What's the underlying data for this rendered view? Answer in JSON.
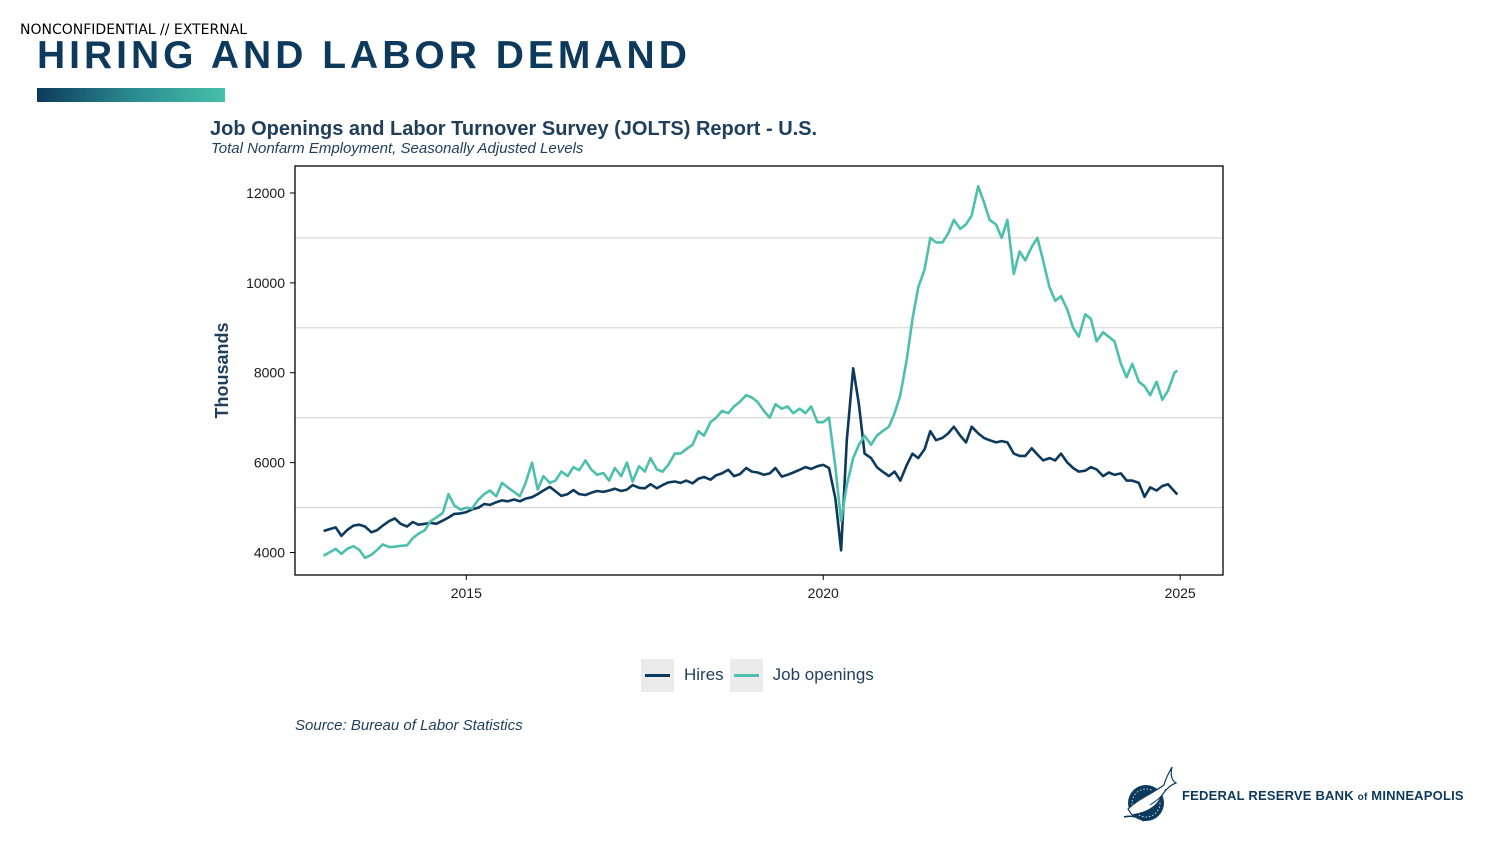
{
  "header": {
    "classification": "NONCONFIDENTIAL // EXTERNAL",
    "title": "HIRING AND LABOR DEMAND"
  },
  "colors": {
    "brand_navy": "#0d3a5c",
    "accent_teal": "#45c1aa",
    "hires": "#0d3a5c",
    "job_openings": "#4cc0ac"
  },
  "footer": {
    "logo_icon": "eagle-seal-icon",
    "logo_text_part1": "FEDERAL RESERVE BANK",
    "logo_text_of": "of",
    "logo_text_part2": "MINNEAPOLIS"
  },
  "chart_data": {
    "type": "line",
    "title": "Job Openings and Labor Turnover Survey (JOLTS) Report - U.S.",
    "subtitle": "Total Nonfarm Employment, Seasonally Adjusted Levels",
    "xlabel": "",
    "ylabel": "Thousands",
    "xlim": [
      2012.6,
      2025.6
    ],
    "ylim": [
      3500,
      12600
    ],
    "x_ticks": [
      2015,
      2020,
      2025
    ],
    "x_tick_labels": [
      "2015",
      "2020",
      "2025"
    ],
    "y_ticks": [
      4000,
      6000,
      8000,
      10000,
      12000
    ],
    "y_tick_labels": [
      "4000",
      "6000",
      "8000",
      "10000",
      "12000"
    ],
    "grid": "horizontal",
    "legend_position": "bottom",
    "source": "Source: Bureau of Labor Statistics",
    "series": [
      {
        "name": "Hires",
        "color": "#0d3a5c",
        "points": [
          [
            2013.0,
            4480
          ],
          [
            2013.08,
            4520
          ],
          [
            2013.17,
            4560
          ],
          [
            2013.25,
            4370
          ],
          [
            2013.33,
            4500
          ],
          [
            2013.42,
            4600
          ],
          [
            2013.5,
            4620
          ],
          [
            2013.58,
            4580
          ],
          [
            2013.67,
            4450
          ],
          [
            2013.75,
            4500
          ],
          [
            2013.83,
            4600
          ],
          [
            2013.92,
            4700
          ],
          [
            2014.0,
            4760
          ],
          [
            2014.08,
            4640
          ],
          [
            2014.17,
            4580
          ],
          [
            2014.25,
            4680
          ],
          [
            2014.33,
            4620
          ],
          [
            2014.42,
            4640
          ],
          [
            2014.5,
            4660
          ],
          [
            2014.58,
            4640
          ],
          [
            2014.67,
            4710
          ],
          [
            2014.75,
            4780
          ],
          [
            2014.83,
            4860
          ],
          [
            2014.92,
            4870
          ],
          [
            2015.0,
            4900
          ],
          [
            2015.08,
            4960
          ],
          [
            2015.17,
            5000
          ],
          [
            2015.25,
            5080
          ],
          [
            2015.33,
            5060
          ],
          [
            2015.42,
            5120
          ],
          [
            2015.5,
            5160
          ],
          [
            2015.58,
            5140
          ],
          [
            2015.67,
            5180
          ],
          [
            2015.75,
            5140
          ],
          [
            2015.83,
            5200
          ],
          [
            2015.92,
            5230
          ],
          [
            2016.0,
            5300
          ],
          [
            2016.08,
            5380
          ],
          [
            2016.17,
            5460
          ],
          [
            2016.25,
            5360
          ],
          [
            2016.33,
            5260
          ],
          [
            2016.42,
            5300
          ],
          [
            2016.5,
            5390
          ],
          [
            2016.58,
            5300
          ],
          [
            2016.67,
            5280
          ],
          [
            2016.75,
            5330
          ],
          [
            2016.83,
            5370
          ],
          [
            2016.92,
            5350
          ],
          [
            2017.0,
            5380
          ],
          [
            2017.08,
            5420
          ],
          [
            2017.17,
            5370
          ],
          [
            2017.25,
            5400
          ],
          [
            2017.33,
            5500
          ],
          [
            2017.42,
            5440
          ],
          [
            2017.5,
            5430
          ],
          [
            2017.58,
            5520
          ],
          [
            2017.67,
            5430
          ],
          [
            2017.75,
            5500
          ],
          [
            2017.83,
            5560
          ],
          [
            2017.92,
            5580
          ],
          [
            2018.0,
            5550
          ],
          [
            2018.08,
            5600
          ],
          [
            2018.17,
            5540
          ],
          [
            2018.25,
            5640
          ],
          [
            2018.33,
            5680
          ],
          [
            2018.42,
            5620
          ],
          [
            2018.5,
            5720
          ],
          [
            2018.58,
            5760
          ],
          [
            2018.67,
            5840
          ],
          [
            2018.75,
            5700
          ],
          [
            2018.83,
            5740
          ],
          [
            2018.92,
            5880
          ],
          [
            2019.0,
            5800
          ],
          [
            2019.08,
            5780
          ],
          [
            2019.17,
            5730
          ],
          [
            2019.25,
            5760
          ],
          [
            2019.33,
            5880
          ],
          [
            2019.42,
            5690
          ],
          [
            2019.5,
            5730
          ],
          [
            2019.58,
            5780
          ],
          [
            2019.67,
            5840
          ],
          [
            2019.75,
            5900
          ],
          [
            2019.83,
            5860
          ],
          [
            2019.92,
            5920
          ],
          [
            2020.0,
            5950
          ],
          [
            2020.08,
            5880
          ],
          [
            2020.17,
            5200
          ],
          [
            2020.25,
            4050
          ],
          [
            2020.33,
            6500
          ],
          [
            2020.42,
            8100
          ],
          [
            2020.5,
            7300
          ],
          [
            2020.58,
            6200
          ],
          [
            2020.67,
            6100
          ],
          [
            2020.75,
            5900
          ],
          [
            2020.83,
            5800
          ],
          [
            2020.92,
            5700
          ],
          [
            2021.0,
            5800
          ],
          [
            2021.08,
            5600
          ],
          [
            2021.17,
            5950
          ],
          [
            2021.25,
            6200
          ],
          [
            2021.33,
            6100
          ],
          [
            2021.42,
            6300
          ],
          [
            2021.5,
            6700
          ],
          [
            2021.58,
            6500
          ],
          [
            2021.67,
            6550
          ],
          [
            2021.75,
            6650
          ],
          [
            2021.83,
            6800
          ],
          [
            2021.92,
            6600
          ],
          [
            2022.0,
            6450
          ],
          [
            2022.08,
            6800
          ],
          [
            2022.17,
            6650
          ],
          [
            2022.25,
            6550
          ],
          [
            2022.33,
            6500
          ],
          [
            2022.42,
            6450
          ],
          [
            2022.5,
            6480
          ],
          [
            2022.58,
            6450
          ],
          [
            2022.67,
            6200
          ],
          [
            2022.75,
            6150
          ],
          [
            2022.83,
            6150
          ],
          [
            2022.92,
            6320
          ],
          [
            2023.0,
            6180
          ],
          [
            2023.08,
            6050
          ],
          [
            2023.17,
            6100
          ],
          [
            2023.25,
            6050
          ],
          [
            2023.33,
            6200
          ],
          [
            2023.42,
            6000
          ],
          [
            2023.5,
            5880
          ],
          [
            2023.58,
            5800
          ],
          [
            2023.67,
            5820
          ],
          [
            2023.75,
            5900
          ],
          [
            2023.83,
            5850
          ],
          [
            2023.92,
            5700
          ],
          [
            2024.0,
            5780
          ],
          [
            2024.08,
            5730
          ],
          [
            2024.17,
            5760
          ],
          [
            2024.25,
            5600
          ],
          [
            2024.33,
            5600
          ],
          [
            2024.42,
            5550
          ],
          [
            2024.5,
            5240
          ],
          [
            2024.58,
            5450
          ],
          [
            2024.67,
            5380
          ],
          [
            2024.75,
            5480
          ],
          [
            2024.83,
            5520
          ],
          [
            2024.92,
            5360
          ],
          [
            2024.96,
            5290
          ]
        ]
      },
      {
        "name": "Job openings",
        "color": "#4cc0ac",
        "points": [
          [
            2013.0,
            3930
          ],
          [
            2013.08,
            4000
          ],
          [
            2013.17,
            4080
          ],
          [
            2013.25,
            3970
          ],
          [
            2013.33,
            4080
          ],
          [
            2013.42,
            4140
          ],
          [
            2013.5,
            4060
          ],
          [
            2013.58,
            3880
          ],
          [
            2013.67,
            3950
          ],
          [
            2013.75,
            4060
          ],
          [
            2013.83,
            4180
          ],
          [
            2013.92,
            4120
          ],
          [
            2014.0,
            4130
          ],
          [
            2014.08,
            4150
          ],
          [
            2014.17,
            4160
          ],
          [
            2014.25,
            4320
          ],
          [
            2014.33,
            4420
          ],
          [
            2014.42,
            4500
          ],
          [
            2014.5,
            4700
          ],
          [
            2014.58,
            4780
          ],
          [
            2014.67,
            4880
          ],
          [
            2014.75,
            5300
          ],
          [
            2014.83,
            5050
          ],
          [
            2014.92,
            4950
          ],
          [
            2015.0,
            5000
          ],
          [
            2015.08,
            4980
          ],
          [
            2015.17,
            5180
          ],
          [
            2015.25,
            5300
          ],
          [
            2015.33,
            5380
          ],
          [
            2015.42,
            5250
          ],
          [
            2015.5,
            5550
          ],
          [
            2015.58,
            5450
          ],
          [
            2015.67,
            5350
          ],
          [
            2015.75,
            5250
          ],
          [
            2015.83,
            5550
          ],
          [
            2015.92,
            6000
          ],
          [
            2016.0,
            5400
          ],
          [
            2016.08,
            5700
          ],
          [
            2016.17,
            5550
          ],
          [
            2016.25,
            5600
          ],
          [
            2016.33,
            5800
          ],
          [
            2016.42,
            5700
          ],
          [
            2016.5,
            5900
          ],
          [
            2016.58,
            5830
          ],
          [
            2016.67,
            6050
          ],
          [
            2016.75,
            5850
          ],
          [
            2016.83,
            5730
          ],
          [
            2016.92,
            5770
          ],
          [
            2017.0,
            5600
          ],
          [
            2017.08,
            5880
          ],
          [
            2017.17,
            5700
          ],
          [
            2017.25,
            6000
          ],
          [
            2017.33,
            5580
          ],
          [
            2017.42,
            5920
          ],
          [
            2017.5,
            5800
          ],
          [
            2017.58,
            6100
          ],
          [
            2017.67,
            5850
          ],
          [
            2017.75,
            5800
          ],
          [
            2017.83,
            5950
          ],
          [
            2017.92,
            6200
          ],
          [
            2018.0,
            6200
          ],
          [
            2018.08,
            6300
          ],
          [
            2018.17,
            6400
          ],
          [
            2018.25,
            6700
          ],
          [
            2018.33,
            6600
          ],
          [
            2018.42,
            6900
          ],
          [
            2018.5,
            7000
          ],
          [
            2018.58,
            7150
          ],
          [
            2018.67,
            7100
          ],
          [
            2018.75,
            7250
          ],
          [
            2018.83,
            7350
          ],
          [
            2018.92,
            7500
          ],
          [
            2019.0,
            7450
          ],
          [
            2019.08,
            7350
          ],
          [
            2019.17,
            7150
          ],
          [
            2019.25,
            7000
          ],
          [
            2019.33,
            7300
          ],
          [
            2019.42,
            7200
          ],
          [
            2019.5,
            7250
          ],
          [
            2019.58,
            7100
          ],
          [
            2019.67,
            7200
          ],
          [
            2019.75,
            7100
          ],
          [
            2019.83,
            7250
          ],
          [
            2019.92,
            6900
          ],
          [
            2020.0,
            6900
          ],
          [
            2020.08,
            7000
          ],
          [
            2020.17,
            5900
          ],
          [
            2020.25,
            4700
          ],
          [
            2020.33,
            5500
          ],
          [
            2020.42,
            6100
          ],
          [
            2020.5,
            6400
          ],
          [
            2020.58,
            6600
          ],
          [
            2020.67,
            6400
          ],
          [
            2020.75,
            6600
          ],
          [
            2020.83,
            6700
          ],
          [
            2020.92,
            6800
          ],
          [
            2021.0,
            7100
          ],
          [
            2021.08,
            7500
          ],
          [
            2021.17,
            8300
          ],
          [
            2021.25,
            9200
          ],
          [
            2021.33,
            9900
          ],
          [
            2021.42,
            10300
          ],
          [
            2021.5,
            11000
          ],
          [
            2021.58,
            10900
          ],
          [
            2021.67,
            10900
          ],
          [
            2021.75,
            11100
          ],
          [
            2021.83,
            11400
          ],
          [
            2021.92,
            11200
          ],
          [
            2022.0,
            11300
          ],
          [
            2022.08,
            11500
          ],
          [
            2022.17,
            12150
          ],
          [
            2022.25,
            11800
          ],
          [
            2022.33,
            11400
          ],
          [
            2022.42,
            11300
          ],
          [
            2022.5,
            11000
          ],
          [
            2022.58,
            11400
          ],
          [
            2022.67,
            10200
          ],
          [
            2022.75,
            10700
          ],
          [
            2022.83,
            10500
          ],
          [
            2022.92,
            10800
          ],
          [
            2023.0,
            11000
          ],
          [
            2023.08,
            10500
          ],
          [
            2023.17,
            9900
          ],
          [
            2023.25,
            9600
          ],
          [
            2023.33,
            9700
          ],
          [
            2023.42,
            9400
          ],
          [
            2023.5,
            9000
          ],
          [
            2023.58,
            8800
          ],
          [
            2023.67,
            9300
          ],
          [
            2023.75,
            9200
          ],
          [
            2023.83,
            8700
          ],
          [
            2023.92,
            8900
          ],
          [
            2024.0,
            8800
          ],
          [
            2024.08,
            8700
          ],
          [
            2024.17,
            8200
          ],
          [
            2024.25,
            7900
          ],
          [
            2024.33,
            8200
          ],
          [
            2024.42,
            7800
          ],
          [
            2024.5,
            7700
          ],
          [
            2024.58,
            7500
          ],
          [
            2024.67,
            7800
          ],
          [
            2024.75,
            7400
          ],
          [
            2024.83,
            7600
          ],
          [
            2024.92,
            8000
          ],
          [
            2024.96,
            8050
          ]
        ]
      }
    ]
  }
}
